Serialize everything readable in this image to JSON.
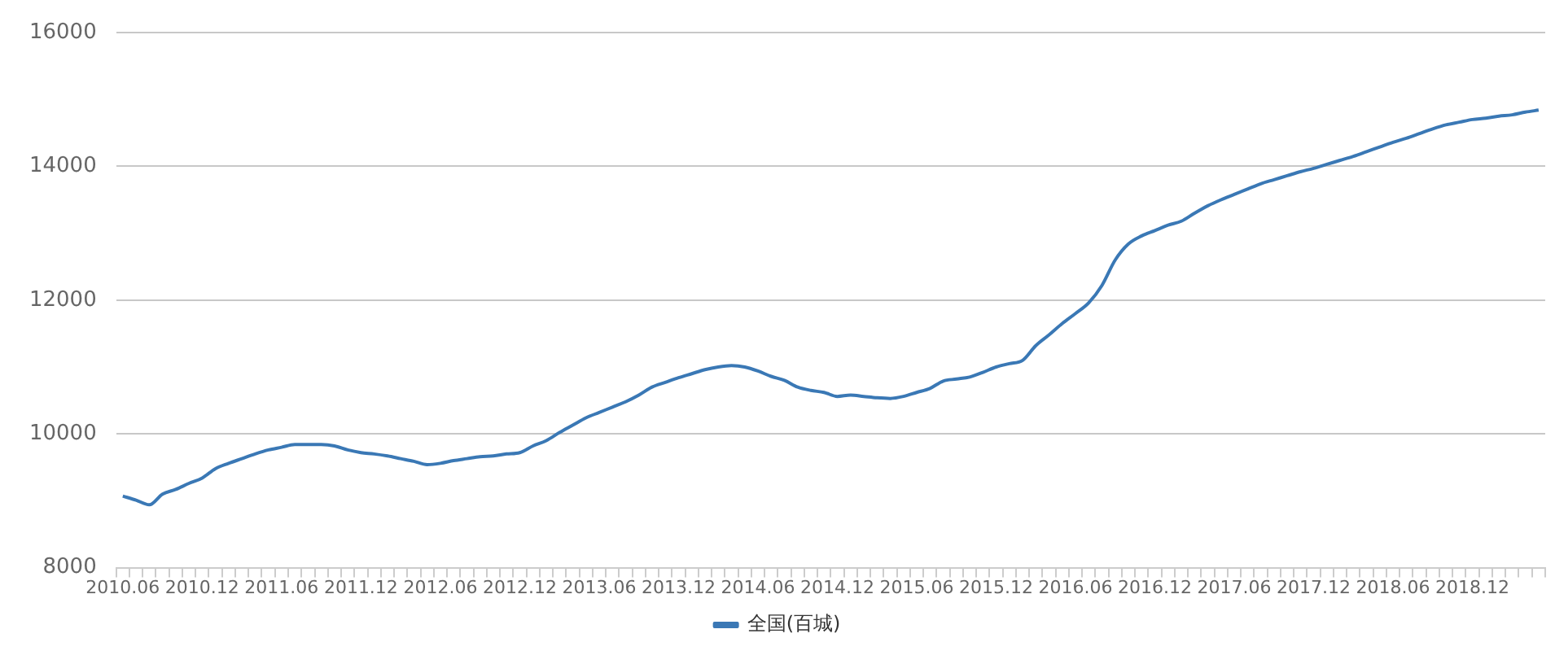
{
  "chart_data": {
    "type": "line",
    "categories": [
      "2010.06",
      null,
      null,
      null,
      null,
      null,
      "2010.12",
      null,
      null,
      null,
      null,
      null,
      "2011.06",
      null,
      null,
      null,
      null,
      null,
      "2011.12",
      null,
      null,
      null,
      null,
      null,
      "2012.06",
      null,
      null,
      null,
      null,
      null,
      "2012.12",
      null,
      null,
      null,
      null,
      null,
      "2013.06",
      null,
      null,
      null,
      null,
      null,
      "2013.12",
      null,
      null,
      null,
      null,
      null,
      "2014.06",
      null,
      null,
      null,
      null,
      null,
      "2014.12",
      null,
      null,
      null,
      null,
      null,
      "2015.06",
      null,
      null,
      null,
      null,
      null,
      "2015.12",
      null,
      null,
      null,
      null,
      null,
      "2016.06",
      null,
      null,
      null,
      null,
      null,
      "2016.12",
      null,
      null,
      null,
      null,
      null,
      "2017.06",
      null,
      null,
      null,
      null,
      null,
      "2017.12",
      null,
      null,
      null,
      null,
      null,
      "2018.06",
      null,
      null,
      null,
      null,
      null,
      "2018.12",
      null,
      null,
      null,
      null,
      null
    ],
    "series": [
      {
        "name": "全国(百城)",
        "color": "#3a78b5",
        "values": [
          9070,
          9010,
          8940,
          9100,
          9170,
          9260,
          9340,
          9480,
          9560,
          9630,
          9700,
          9760,
          9800,
          9840,
          9840,
          9840,
          9820,
          9760,
          9720,
          9700,
          9670,
          9630,
          9590,
          9540,
          9560,
          9600,
          9630,
          9660,
          9670,
          9700,
          9720,
          9820,
          9900,
          10020,
          10130,
          10240,
          10320,
          10400,
          10480,
          10580,
          10700,
          10770,
          10840,
          10900,
          10960,
          11000,
          11020,
          11000,
          10940,
          10860,
          10800,
          10700,
          10650,
          10620,
          10560,
          10580,
          10560,
          10540,
          10530,
          10560,
          10620,
          10680,
          10790,
          10820,
          10850,
          10920,
          11000,
          11050,
          11100,
          11320,
          11480,
          11650,
          11800,
          11960,
          12220,
          12600,
          12840,
          12960,
          13040,
          13120,
          13180,
          13300,
          13410,
          13500,
          13580,
          13660,
          13740,
          13800,
          13860,
          13920,
          13970,
          14030,
          14090,
          14150,
          14220,
          14290,
          14360,
          14420,
          14490,
          14560,
          14620,
          14660,
          14700,
          14720,
          14750,
          14770,
          14810,
          14840
        ]
      }
    ],
    "ylim": [
      8000,
      16000
    ],
    "yticks": [
      8000,
      10000,
      12000,
      14000,
      16000
    ],
    "grid": "y",
    "legend": "bottom",
    "marker": "none",
    "line_style": "solid"
  }
}
